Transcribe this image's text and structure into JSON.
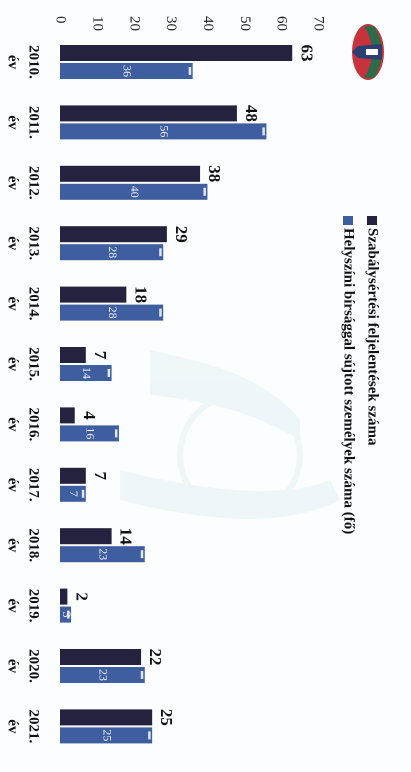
{
  "chart_data": {
    "type": "bar",
    "orientation": "horizontal",
    "title": "",
    "xlabel": "",
    "ylabel": "",
    "xlim": [
      0,
      70
    ],
    "x_ticks": [
      0,
      10,
      20,
      30,
      40,
      50,
      60,
      70
    ],
    "categories": [
      [
        "2010.",
        "év"
      ],
      [
        "2011.",
        "év"
      ],
      [
        "2012.",
        "év"
      ],
      [
        "2013.",
        "év"
      ],
      [
        "2014.",
        "év"
      ],
      [
        "2015.",
        "év"
      ],
      [
        "2016.",
        "év"
      ],
      [
        "2017.",
        "év"
      ],
      [
        "2018.",
        "év"
      ],
      [
        "2019.",
        "év"
      ],
      [
        "2020.",
        "év"
      ],
      [
        "2021.",
        "év"
      ]
    ],
    "series": [
      {
        "name": "Szabálysértési feljelentések száma",
        "color": "#24223e",
        "values": [
          63,
          48,
          38,
          29,
          18,
          7,
          4,
          7,
          14,
          2,
          22,
          25
        ],
        "labels": [
          "63",
          "48",
          "38",
          "29",
          "18",
          "7",
          "4",
          "7",
          "14",
          "2",
          "22",
          "25"
        ]
      },
      {
        "name": "Helyszíni bírsággal sújtott személyek száma (fő)",
        "color": "#3f5e9f",
        "values": [
          36,
          56,
          40,
          28,
          28,
          14,
          16,
          7,
          23,
          3,
          23,
          25
        ],
        "labels": [
          "36",
          "56",
          "40",
          "28",
          "28",
          "14",
          "16",
          "7",
          "23",
          "3",
          "23",
          "25"
        ]
      }
    ],
    "grid": false,
    "legend_position": "top-right"
  },
  "logo": {
    "name": "crest-logo-icon",
    "colors": {
      "red": "#c8323c",
      "green": "#2e6b48",
      "navy": "#2b3f73"
    }
  }
}
